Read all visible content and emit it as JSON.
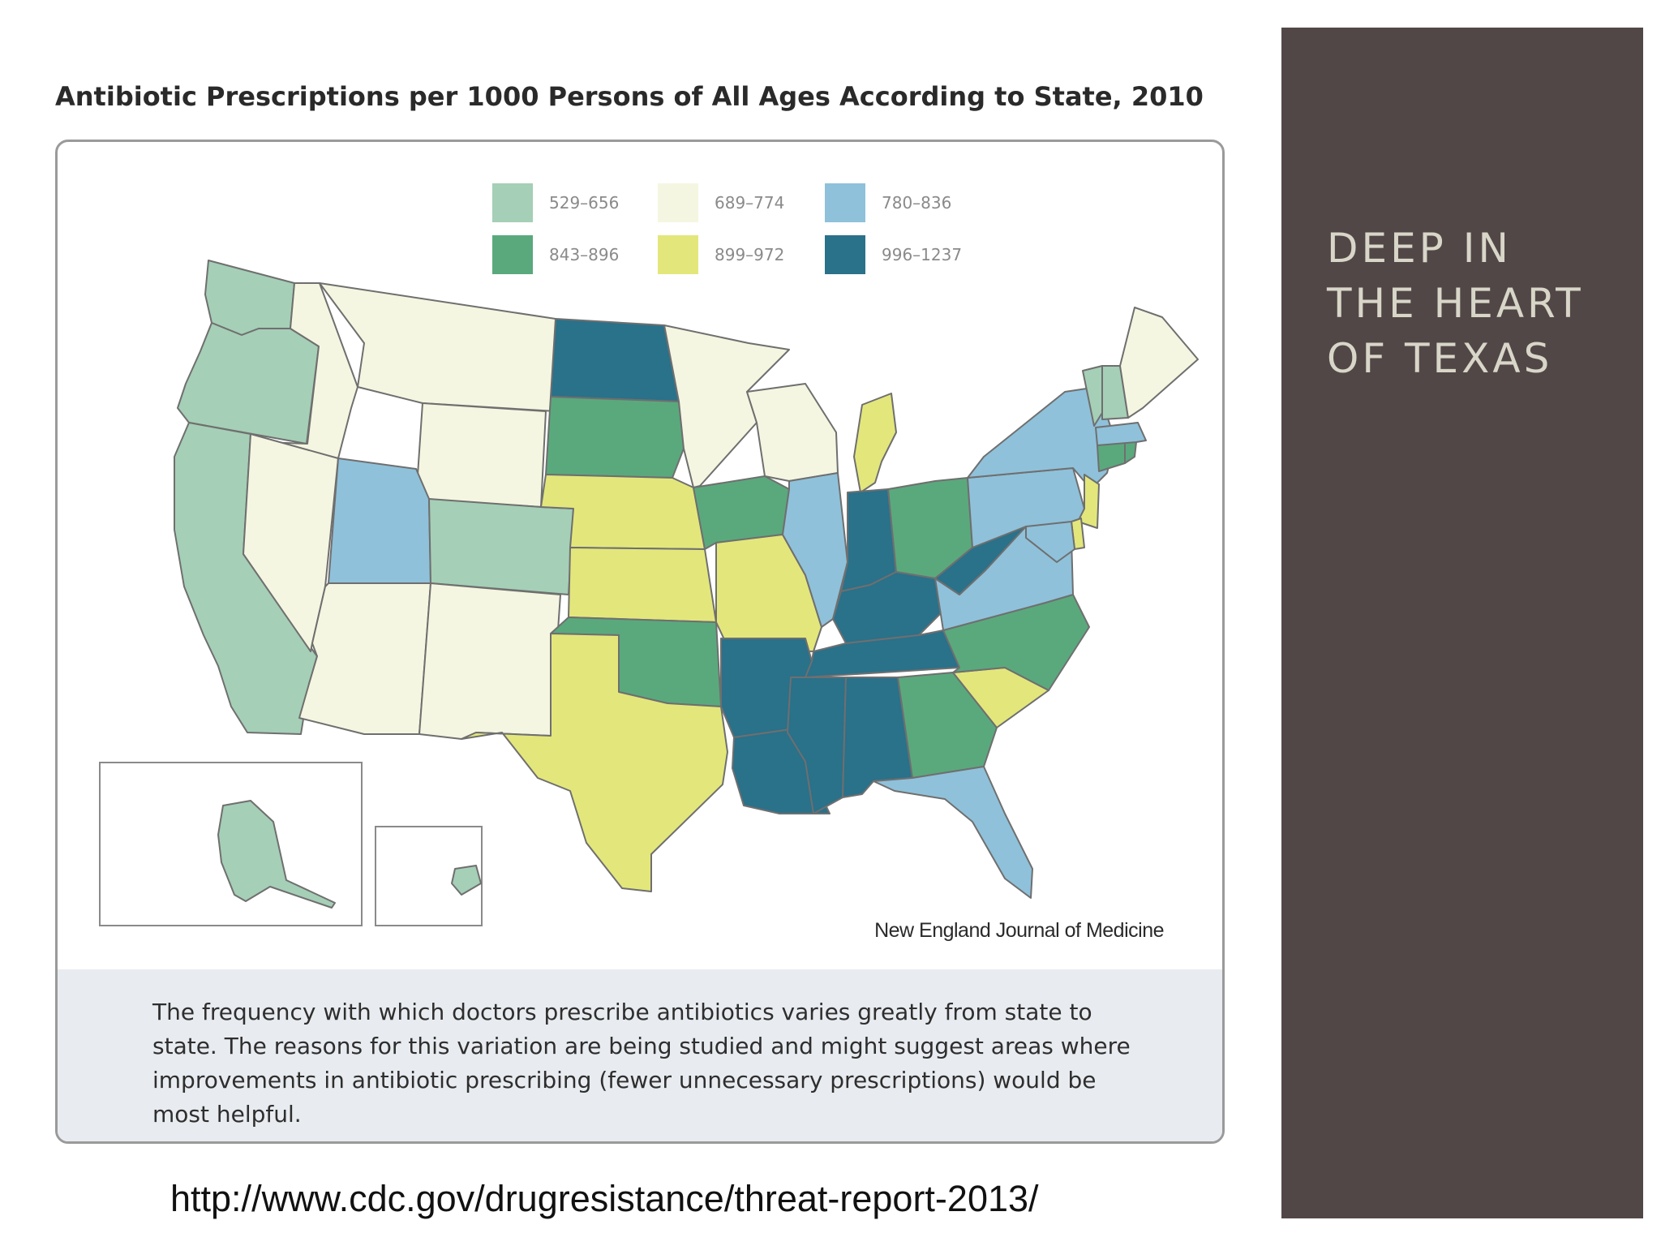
{
  "slide": {
    "figure_title": "Antibiotic Prescriptions per 1000 Persons of All Ages According to State, 2010",
    "source": "New England Journal of Medicine",
    "caption": "The frequency with which doctors prescribe antibiotics varies greatly from state to state. The reasons for this variation are being studied and might suggest areas where improvements in antibiotic prescribing (fewer unnecessary prescriptions) would be most helpful.",
    "url": "http://www.cdc.gov/drugresistance/threat-report-2013/",
    "side_heading": "DEEP IN\nTHE HEART\nOF TEXAS",
    "side_panel_color": "#524747"
  },
  "legend": [
    {
      "range": "529–656",
      "color": "#a5cfb6"
    },
    {
      "range": "689–774",
      "color": "#f5f6e1"
    },
    {
      "range": "780–836",
      "color": "#8fc1da"
    },
    {
      "range": "843–896",
      "color": "#5aa97d"
    },
    {
      "range": "899–972",
      "color": "#e3e77b"
    },
    {
      "range": "996–1237",
      "color": "#2a718a"
    }
  ],
  "map_data": {
    "title": "Antibiotic Prescriptions per 1000 Persons of All Ages According to State, 2010",
    "states": [
      {
        "state": "WA",
        "range": "529–656"
      },
      {
        "state": "OR",
        "range": "529–656"
      },
      {
        "state": "CA",
        "range": "529–656"
      },
      {
        "state": "ID",
        "range": "689–774"
      },
      {
        "state": "NV",
        "range": "689–774"
      },
      {
        "state": "MT",
        "range": "689–774"
      },
      {
        "state": "WY",
        "range": "689–774"
      },
      {
        "state": "UT",
        "range": "780–836"
      },
      {
        "state": "CO",
        "range": "529–656"
      },
      {
        "state": "AZ",
        "range": "689–774"
      },
      {
        "state": "NM",
        "range": "689–774"
      },
      {
        "state": "ND",
        "range": "996–1237"
      },
      {
        "state": "SD",
        "range": "843–896"
      },
      {
        "state": "NE",
        "range": "899–972"
      },
      {
        "state": "KS",
        "range": "899–972"
      },
      {
        "state": "OK",
        "range": "843–896"
      },
      {
        "state": "TX",
        "range": "899–972"
      },
      {
        "state": "MN",
        "range": "689–774"
      },
      {
        "state": "IA",
        "range": "843–896"
      },
      {
        "state": "MO",
        "range": "899–972"
      },
      {
        "state": "AR",
        "range": "996–1237"
      },
      {
        "state": "LA",
        "range": "996–1237"
      },
      {
        "state": "WI",
        "range": "689–774"
      },
      {
        "state": "IL",
        "range": "780–836"
      },
      {
        "state": "MI",
        "range": "899–972"
      },
      {
        "state": "IN",
        "range": "996–1237"
      },
      {
        "state": "OH",
        "range": "843–896"
      },
      {
        "state": "KY",
        "range": "996–1237"
      },
      {
        "state": "TN",
        "range": "996–1237"
      },
      {
        "state": "MS",
        "range": "996–1237"
      },
      {
        "state": "AL",
        "range": "996–1237"
      },
      {
        "state": "GA",
        "range": "843–896"
      },
      {
        "state": "FL",
        "range": "780–836"
      },
      {
        "state": "SC",
        "range": "899–972"
      },
      {
        "state": "NC",
        "range": "843–896"
      },
      {
        "state": "VA",
        "range": "780–836"
      },
      {
        "state": "WV",
        "range": "996–1237"
      },
      {
        "state": "PA",
        "range": "780–836"
      },
      {
        "state": "NY",
        "range": "780–836"
      },
      {
        "state": "NJ",
        "range": "899–972"
      },
      {
        "state": "DE",
        "range": "899–972"
      },
      {
        "state": "MD",
        "range": "780–836"
      },
      {
        "state": "CT",
        "range": "843–896"
      },
      {
        "state": "RI",
        "range": "843–896"
      },
      {
        "state": "MA",
        "range": "780–836"
      },
      {
        "state": "VT",
        "range": "529–656"
      },
      {
        "state": "NH",
        "range": "529–656"
      },
      {
        "state": "ME",
        "range": "689–774"
      },
      {
        "state": "AK",
        "range": "529–656"
      },
      {
        "state": "HI",
        "range": "529–656"
      }
    ]
  }
}
